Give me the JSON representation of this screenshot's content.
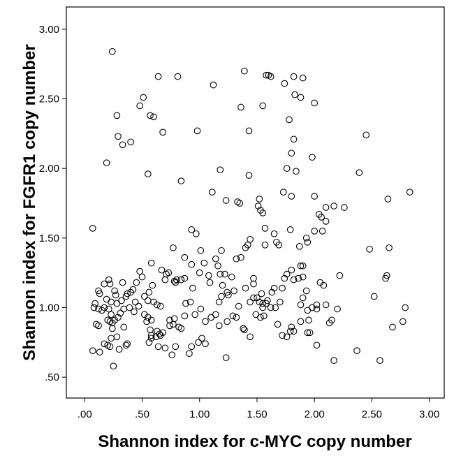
{
  "chart_data": {
    "type": "scatter",
    "title": "",
    "xlabel": "Shannon index for c-MYC copy number",
    "ylabel": "Shannon index for FGFR1 copy number",
    "xlim": [
      -0.16,
      3.13
    ],
    "ylim": [
      0.35,
      3.16
    ],
    "xticks": [
      0,
      0.5,
      1,
      1.5,
      2,
      2.5,
      3
    ],
    "xtick_labels": [
      ".00",
      ".50",
      "1.00",
      "1.50",
      "2.00",
      "2.50",
      "3.00"
    ],
    "yticks": [
      0.5,
      1,
      1.5,
      2,
      2.5,
      3
    ],
    "ytick_labels": [
      ".50",
      "1.00",
      "1.50",
      "2.00",
      "2.50",
      "3.00"
    ],
    "grid": false,
    "legend": "none",
    "marker": "open-circle",
    "marker_color": "#000000",
    "points": [
      [
        0.24,
        2.84
      ],
      [
        0.64,
        2.66
      ],
      [
        0.81,
        2.66
      ],
      [
        1.12,
        2.6
      ],
      [
        1.39,
        2.7
      ],
      [
        1.58,
        2.67
      ],
      [
        1.6,
        2.67
      ],
      [
        1.62,
        2.66
      ],
      [
        1.82,
        2.66
      ],
      [
        1.9,
        2.65
      ],
      [
        1.74,
        2.61
      ],
      [
        0.28,
        2.38
      ],
      [
        0.48,
        2.45
      ],
      [
        0.51,
        2.51
      ],
      [
        0.57,
        2.38
      ],
      [
        0.6,
        2.37
      ],
      [
        0.29,
        2.23
      ],
      [
        0.33,
        2.17
      ],
      [
        0.4,
        2.19
      ],
      [
        0.68,
        2.26
      ],
      [
        0.98,
        2.27
      ],
      [
        1.36,
        2.44
      ],
      [
        1.55,
        2.45
      ],
      [
        1.43,
        2.27
      ],
      [
        1.83,
        2.53
      ],
      [
        1.88,
        2.51
      ],
      [
        1.78,
        2.35
      ],
      [
        2.0,
        2.47
      ],
      [
        1.82,
        2.21
      ],
      [
        2.45,
        2.24
      ],
      [
        0.19,
        2.04
      ],
      [
        0.55,
        1.96
      ],
      [
        0.84,
        1.91
      ],
      [
        1.18,
        1.99
      ],
      [
        1.43,
        1.95
      ],
      [
        1.76,
        2.0
      ],
      [
        1.84,
        1.98
      ],
      [
        1.8,
        2.11
      ],
      [
        1.98,
        2.08
      ],
      [
        2.39,
        1.97
      ],
      [
        0.07,
        1.57
      ],
      [
        1.11,
        1.83
      ],
      [
        1.23,
        1.77
      ],
      [
        1.33,
        1.76
      ],
      [
        1.35,
        1.75
      ],
      [
        1.51,
        1.73
      ],
      [
        1.52,
        1.78
      ],
      [
        1.53,
        1.7
      ],
      [
        1.55,
        1.68
      ],
      [
        1.73,
        1.83
      ],
      [
        1.8,
        1.8
      ],
      [
        2.0,
        1.8
      ],
      [
        2.04,
        1.67
      ],
      [
        2.06,
        1.65
      ],
      [
        2.1,
        1.72
      ],
      [
        2.17,
        1.73
      ],
      [
        2.26,
        1.72
      ],
      [
        2.64,
        1.78
      ],
      [
        2.83,
        1.83
      ],
      [
        1.57,
        1.57
      ],
      [
        1.65,
        1.53
      ],
      [
        1.79,
        1.56
      ],
      [
        1.87,
        1.44
      ],
      [
        1.93,
        1.5
      ],
      [
        1.94,
        1.47
      ],
      [
        2.0,
        1.55
      ],
      [
        2.07,
        1.55
      ],
      [
        2.1,
        1.62
      ],
      [
        2.48,
        1.42
      ],
      [
        2.65,
        1.43
      ],
      [
        1.57,
        1.45
      ],
      [
        1.67,
        1.47
      ],
      [
        1.69,
        1.45
      ],
      [
        1.44,
        1.49
      ],
      [
        1.42,
        1.45
      ],
      [
        1.4,
        1.43
      ],
      [
        1.36,
        1.36
      ],
      [
        1.32,
        1.35
      ],
      [
        0.77,
        1.43
      ],
      [
        0.93,
        1.56
      ],
      [
        0.97,
        1.53
      ],
      [
        1.01,
        1.41
      ],
      [
        1.04,
        1.32
      ],
      [
        1.14,
        1.35
      ],
      [
        1.19,
        1.41
      ],
      [
        1.08,
        1.23
      ],
      [
        1.0,
        1.25
      ],
      [
        1.16,
        1.3
      ],
      [
        1.18,
        1.24
      ],
      [
        1.22,
        1.24
      ],
      [
        1.28,
        1.22
      ],
      [
        1.09,
        1.18
      ],
      [
        0.94,
        1.14
      ],
      [
        0.87,
        1.36
      ],
      [
        0.8,
        1.2
      ],
      [
        0.78,
        1.19
      ],
      [
        0.79,
        1.18
      ],
      [
        0.84,
        1.2
      ],
      [
        0.87,
        1.21
      ],
      [
        0.93,
        1.31
      ],
      [
        0.73,
        1.25
      ],
      [
        0.5,
        1.22
      ],
      [
        0.48,
        1.26
      ],
      [
        0.45,
        1.18
      ],
      [
        0.42,
        1.13
      ],
      [
        0.58,
        1.32
      ],
      [
        0.67,
        1.27
      ],
      [
        0.71,
        1.24
      ],
      [
        0.7,
        1.2
      ],
      [
        0.59,
        1.16
      ],
      [
        0.56,
        1.11
      ],
      [
        0.52,
        1.08
      ],
      [
        0.55,
        1.05
      ],
      [
        0.6,
        1.04
      ],
      [
        0.63,
        1.02
      ],
      [
        0.66,
        1.01
      ],
      [
        0.21,
        1.2
      ],
      [
        0.22,
        1.17
      ],
      [
        0.17,
        1.17
      ],
      [
        0.12,
        1.12
      ],
      [
        0.13,
        1.1
      ],
      [
        0.19,
        1.06
      ],
      [
        0.23,
        1.04
      ],
      [
        0.28,
        1.03
      ],
      [
        0.32,
        1.05
      ],
      [
        0.36,
        1.08
      ],
      [
        0.27,
        1.09
      ],
      [
        0.26,
        1.12
      ],
      [
        0.33,
        1.18
      ],
      [
        0.37,
        1.1
      ],
      [
        0.4,
        1.11
      ],
      [
        0.44,
        1.04
      ],
      [
        0.47,
        1.01
      ],
      [
        0.08,
        1.0
      ],
      [
        0.09,
        1.03
      ],
      [
        0.12,
        0.99
      ],
      [
        0.15,
        0.98
      ],
      [
        0.17,
        1.0
      ],
      [
        0.21,
        0.99
      ],
      [
        0.23,
        0.95
      ],
      [
        0.2,
        0.91
      ],
      [
        0.22,
        0.9
      ],
      [
        0.24,
        0.89
      ],
      [
        0.26,
        0.91
      ],
      [
        0.29,
        0.93
      ],
      [
        0.31,
        0.96
      ],
      [
        0.34,
        0.99
      ],
      [
        0.39,
        1.0
      ],
      [
        0.43,
        0.97
      ],
      [
        0.52,
        0.95
      ],
      [
        0.55,
        0.93
      ],
      [
        0.58,
        0.91
      ],
      [
        0.54,
        0.9
      ],
      [
        0.1,
        0.88
      ],
      [
        0.12,
        0.87
      ],
      [
        0.34,
        0.86
      ],
      [
        0.24,
        0.85
      ],
      [
        0.57,
        0.84
      ],
      [
        0.63,
        0.83
      ],
      [
        0.65,
        0.81
      ],
      [
        0.07,
        0.69
      ],
      [
        0.13,
        0.68
      ],
      [
        0.17,
        0.74
      ],
      [
        0.2,
        0.73
      ],
      [
        0.22,
        0.72
      ],
      [
        0.25,
        0.58
      ],
      [
        0.3,
        0.7
      ],
      [
        0.36,
        0.73
      ],
      [
        0.23,
        0.78
      ],
      [
        0.28,
        0.79
      ],
      [
        0.37,
        0.74
      ],
      [
        0.56,
        0.75
      ],
      [
        0.58,
        0.78
      ],
      [
        0.58,
        0.8
      ],
      [
        0.62,
        0.79
      ],
      [
        0.66,
        0.8
      ],
      [
        0.68,
        0.82
      ],
      [
        0.7,
        0.71
      ],
      [
        0.64,
        0.72
      ],
      [
        0.76,
        0.66
      ],
      [
        0.79,
        0.72
      ],
      [
        0.74,
        0.87
      ],
      [
        0.77,
        0.88
      ],
      [
        0.82,
        0.86
      ],
      [
        0.84,
        0.85
      ],
      [
        0.87,
        0.94
      ],
      [
        0.78,
        0.92
      ],
      [
        0.74,
        0.91
      ],
      [
        0.91,
        0.67
      ],
      [
        0.93,
        0.72
      ],
      [
        0.99,
        0.75
      ],
      [
        1.02,
        0.78
      ],
      [
        1.05,
        0.74
      ],
      [
        1.23,
        0.64
      ],
      [
        1.05,
        0.9
      ],
      [
        1.1,
        0.93
      ],
      [
        1.14,
        0.95
      ],
      [
        1.17,
        0.87
      ],
      [
        1.24,
        0.9
      ],
      [
        1.29,
        0.94
      ],
      [
        1.32,
        0.93
      ],
      [
        1.38,
        0.85
      ],
      [
        1.44,
        0.79
      ],
      [
        1.17,
        1.04
      ],
      [
        1.19,
        1.08
      ],
      [
        1.25,
        1.09
      ],
      [
        1.3,
        1.12
      ],
      [
        1.4,
        1.14
      ],
      [
        1.44,
        1.04
      ],
      [
        1.47,
        1.17
      ],
      [
        1.49,
        0.95
      ],
      [
        1.53,
        0.93
      ],
      [
        1.56,
        0.94
      ],
      [
        1.55,
        1.0
      ],
      [
        1.59,
        1.05
      ],
      [
        1.63,
        1.11
      ],
      [
        1.65,
        1.14
      ],
      [
        1.72,
        1.14
      ],
      [
        1.74,
        1.21
      ],
      [
        1.76,
        1.24
      ],
      [
        1.8,
        1.27
      ],
      [
        1.82,
        1.2
      ],
      [
        1.86,
        1.21
      ],
      [
        1.9,
        1.22
      ],
      [
        1.47,
        1.21
      ],
      [
        1.55,
        1.03
      ],
      [
        1.58,
        1.03
      ],
      [
        1.62,
        1.0
      ],
      [
        1.68,
        0.88
      ],
      [
        1.72,
        0.8
      ],
      [
        1.76,
        0.79
      ],
      [
        1.79,
        0.83
      ],
      [
        1.8,
        0.86
      ],
      [
        1.82,
        0.83
      ],
      [
        1.88,
        0.9
      ],
      [
        1.88,
        1.02
      ],
      [
        1.9,
        1.07
      ],
      [
        1.93,
        1.12
      ],
      [
        1.94,
        0.82
      ],
      [
        1.95,
        0.91
      ],
      [
        1.96,
        0.82
      ],
      [
        2.02,
        0.73
      ],
      [
        2.02,
        1.02
      ],
      [
        2.05,
        1.18
      ],
      [
        2.08,
        1.16
      ],
      [
        2.1,
        1.02
      ],
      [
        2.13,
        0.89
      ],
      [
        2.15,
        0.91
      ],
      [
        2.17,
        0.62
      ],
      [
        2.22,
        1.23
      ],
      [
        2.37,
        0.69
      ],
      [
        2.52,
        1.08
      ],
      [
        2.57,
        0.62
      ],
      [
        2.62,
        1.21
      ],
      [
        2.63,
        1.23
      ],
      [
        2.68,
        0.86
      ],
      [
        2.77,
        0.9
      ],
      [
        2.79,
        1.0
      ],
      [
        1.47,
        1.07
      ],
      [
        1.5,
        1.07
      ],
      [
        1.52,
        1.04
      ],
      [
        1.54,
        1.1
      ],
      [
        1.34,
        1.01
      ],
      [
        1.39,
        0.84
      ],
      [
        1.7,
        1.04
      ],
      [
        1.66,
        1.0
      ],
      [
        1.94,
        0.98
      ],
      [
        1.98,
        1.0
      ],
      [
        2.02,
        0.99
      ],
      [
        1.9,
        1.3
      ],
      [
        1.88,
        1.3
      ],
      [
        2.2,
        0.99
      ],
      [
        1.2,
        1.16
      ],
      [
        1.24,
        1.11
      ],
      [
        0.88,
        1.03
      ],
      [
        0.92,
        1.04
      ],
      [
        0.96,
        0.95
      ],
      [
        1.01,
        0.99
      ]
    ]
  }
}
